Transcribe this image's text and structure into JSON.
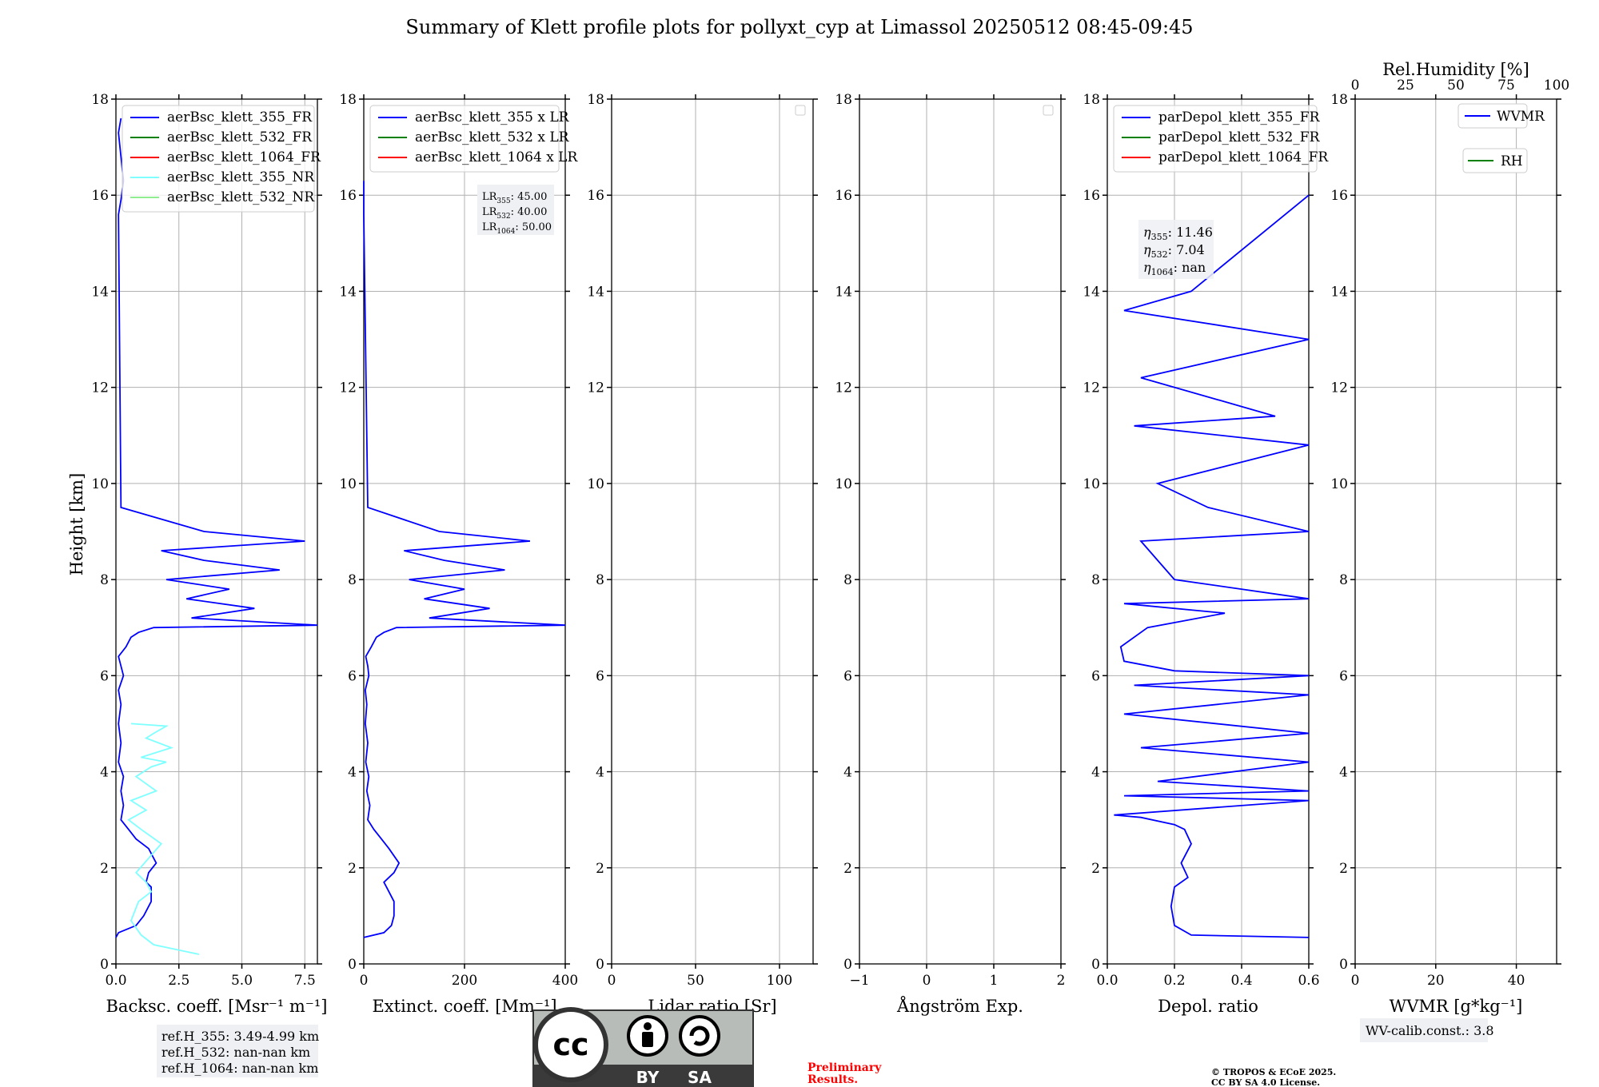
{
  "title": "Summary of Klett profile plots for pollyxt_cyp at Limassol 20250512 08:45-09:45",
  "ylabel": "Height [km]",
  "colors": {
    "blue": "#0000ff",
    "green": "#008000",
    "red": "#ff0000",
    "cyan": "#7fffff",
    "lightgreen": "#90ee90",
    "grid": "#b0b0b0"
  },
  "panels": [
    {
      "xlabel": "Backsc. coeff. [Msr⁻¹ m⁻¹]",
      "xticks": [
        "0.0",
        "2.5",
        "5.0",
        "7.5"
      ],
      "legend": [
        "aerBsc_klett_355_FR",
        "aerBsc_klett_532_FR",
        "aerBsc_klett_1064_FR",
        "aerBsc_klett_355_NR",
        "aerBsc_klett_532_NR"
      ]
    },
    {
      "xlabel": "Extinct. coeff. [Mm⁻¹]",
      "xticks": [
        "0",
        "200",
        "400"
      ],
      "legend": [
        "aerBsc_klett_355 x LR",
        "aerBsc_klett_532 x LR",
        "aerBsc_klett_1064 x LR"
      ]
    },
    {
      "xlabel": "Lidar ratio [Sr]",
      "xticks": [
        "0",
        "50",
        "100"
      ],
      "legend": []
    },
    {
      "xlabel": "Ångström Exp.",
      "xticks": [
        "−1",
        "0",
        "1",
        "2"
      ],
      "legend": []
    },
    {
      "xlabel": "Depol. ratio",
      "xticks": [
        "0.0",
        "0.2",
        "0.4",
        "0.6"
      ],
      "legend": [
        "parDepol_klett_355_FR",
        "parDepol_klett_532_FR",
        "parDepol_klett_1064_FR"
      ]
    },
    {
      "xlabel": "WVMR [g*kg⁻¹]",
      "xticks": [
        "0",
        "20",
        "40"
      ],
      "top_xlabel": "Rel.Humidity [%]",
      "top_xticks": [
        "0",
        "25",
        "50",
        "75",
        "100"
      ],
      "legend": [
        "WVMR",
        "RH"
      ]
    }
  ],
  "yticks": [
    "0",
    "2",
    "4",
    "6",
    "8",
    "10",
    "12",
    "14",
    "16",
    "18"
  ],
  "annotations": {
    "lr": {
      "lr355": "45.00",
      "lr532": "40.00",
      "lr1064": "50.00"
    },
    "eta": {
      "eta355": "11.46",
      "eta532": "7.04",
      "eta1064": "nan"
    },
    "refh": [
      "ref.H_355: 3.49-4.99 km",
      "ref.H_532: nan-nan km",
      "ref.H_1064: nan-nan km"
    ],
    "wv_calib": "WV-calib.const.: 3.8",
    "preliminary": [
      "Preliminary",
      "Results."
    ],
    "copyright": [
      "© TROPOS & ECoE 2025.",
      "CC BY SA 4.0 License."
    ],
    "license_badge": {
      "cc": "cc",
      "by": "BY",
      "sa": "SA"
    }
  },
  "chart_data": [
    {
      "type": "line",
      "panel": "Backscatter",
      "xlim": [
        0,
        8
      ],
      "ylim": [
        0,
        18
      ],
      "xlabel": "Backsc. coeff. [Msr⁻¹ m⁻¹]",
      "ylabel": "Height [km]",
      "series": [
        {
          "name": "aerBsc_klett_355_FR",
          "color": "#0000ff",
          "x": [
            0.0,
            0.1,
            0.8,
            1.1,
            1.4,
            1.4,
            1.2,
            1.3,
            1.6,
            1.3,
            0.8,
            0.5,
            0.2,
            0.3,
            0.2,
            0.3,
            0.1,
            0.2,
            0.1,
            0.2,
            0.1,
            0.3,
            0.2,
            0.1,
            0.4,
            0.6,
            0.9,
            1.5,
            8.0,
            3.0,
            5.5,
            2.8,
            4.5,
            2.0,
            6.5,
            3.5,
            1.8,
            7.5,
            3.5,
            0.2,
            0.1,
            0.2,
            0.3,
            0.1,
            0.2
          ],
          "y": [
            0.55,
            0.65,
            0.8,
            1.0,
            1.3,
            1.6,
            1.7,
            1.9,
            2.1,
            2.4,
            2.6,
            2.8,
            3.0,
            3.3,
            3.6,
            3.9,
            4.2,
            4.6,
            5.0,
            5.4,
            5.7,
            6.0,
            6.2,
            6.4,
            6.6,
            6.8,
            6.9,
            7.0,
            7.05,
            7.2,
            7.4,
            7.6,
            7.8,
            8.0,
            8.2,
            8.4,
            8.6,
            8.8,
            9.0,
            9.5,
            15.6,
            15.9,
            16.3,
            17.3,
            17.6
          ]
        },
        {
          "name": "aerBsc_klett_355_NR",
          "color": "#7fffff",
          "x": [
            3.3,
            1.5,
            1.0,
            0.6,
            0.9,
            1.4,
            1.2,
            0.8,
            1.3,
            1.8,
            1.0,
            0.5,
            1.2,
            0.6,
            1.6,
            0.8,
            1.4,
            2.0,
            1.0,
            2.2,
            1.2,
            1.5,
            2.0,
            0.6
          ],
          "y": [
            0.2,
            0.4,
            0.6,
            0.9,
            1.3,
            1.5,
            1.7,
            1.9,
            2.2,
            2.5,
            2.8,
            3.0,
            3.2,
            3.4,
            3.6,
            3.9,
            4.1,
            4.2,
            4.3,
            4.5,
            4.7,
            4.8,
            4.95,
            5.0
          ]
        }
      ]
    },
    {
      "type": "line",
      "panel": "Extinction",
      "xlim": [
        0,
        400
      ],
      "ylim": [
        0,
        18
      ],
      "xlabel": "Extinct. coeff. [Mm⁻¹]",
      "series": [
        {
          "name": "aerBsc_klett_355 x LR",
          "color": "#0000ff",
          "x": [
            0,
            40,
            55,
            60,
            60,
            45,
            40,
            60,
            70,
            50,
            35,
            20,
            8,
            12,
            6,
            10,
            4,
            8,
            3,
            6,
            3,
            10,
            8,
            4,
            15,
            25,
            40,
            65,
            400,
            130,
            250,
            120,
            200,
            90,
            280,
            160,
            80,
            330,
            150,
            8,
            0,
            0
          ],
          "y": [
            0.55,
            0.65,
            0.8,
            1.0,
            1.3,
            1.6,
            1.7,
            1.9,
            2.1,
            2.4,
            2.6,
            2.8,
            3.0,
            3.3,
            3.6,
            3.9,
            4.2,
            4.6,
            5.0,
            5.4,
            5.7,
            6.0,
            6.2,
            6.4,
            6.6,
            6.8,
            6.9,
            7.0,
            7.05,
            7.2,
            7.4,
            7.6,
            7.8,
            8.0,
            8.2,
            8.4,
            8.6,
            8.8,
            9.0,
            9.5,
            15.6,
            16.3
          ]
        }
      ]
    },
    {
      "type": "line",
      "panel": "Lidar ratio",
      "xlim": [
        0,
        120
      ],
      "ylim": [
        0,
        18
      ],
      "xlabel": "Lidar ratio [Sr]",
      "series": []
    },
    {
      "type": "line",
      "panel": "Angstrom",
      "xlim": [
        -1,
        2
      ],
      "ylim": [
        0,
        18
      ],
      "xlabel": "Ångström Exp.",
      "series": []
    },
    {
      "type": "line",
      "panel": "Depolarization",
      "xlim": [
        0,
        0.6
      ],
      "ylim": [
        0,
        18
      ],
      "xlabel": "Depol. ratio",
      "series": [
        {
          "name": "parDepol_klett_355_FR",
          "color": "#0000ff",
          "x": [
            0.6,
            0.25,
            0.2,
            0.19,
            0.2,
            0.24,
            0.22,
            0.25,
            0.23,
            0.2,
            0.1,
            0.02,
            0.6,
            0.05,
            0.6,
            0.15,
            0.6,
            0.1,
            0.6,
            0.05,
            0.6,
            0.08,
            0.6,
            0.2,
            0.05,
            0.04,
            0.12,
            0.35,
            0.05,
            0.6,
            0.2,
            0.15,
            0.1,
            0.6,
            0.3,
            0.15,
            0.6,
            0.08,
            0.5,
            0.1,
            0.6,
            0.05,
            0.25,
            0.6
          ],
          "y": [
            0.55,
            0.6,
            0.8,
            1.2,
            1.6,
            1.8,
            2.1,
            2.5,
            2.8,
            2.9,
            3.05,
            3.1,
            3.4,
            3.5,
            3.6,
            3.8,
            4.2,
            4.5,
            4.8,
            5.2,
            5.6,
            5.8,
            6.0,
            6.1,
            6.3,
            6.6,
            7.0,
            7.3,
            7.5,
            7.6,
            8.0,
            8.4,
            8.8,
            9.0,
            9.5,
            10.0,
            10.8,
            11.2,
            11.4,
            12.2,
            13.0,
            13.6,
            14.0,
            16.0
          ]
        }
      ]
    },
    {
      "type": "line",
      "panel": "Water vapor",
      "xlim": [
        0,
        50
      ],
      "ylim": [
        0,
        18
      ],
      "xlabel": "WVMR [g*kg⁻¹]",
      "top_xlim": [
        0,
        100
      ],
      "top_xlabel": "Rel.Humidity [%]",
      "series": []
    }
  ]
}
